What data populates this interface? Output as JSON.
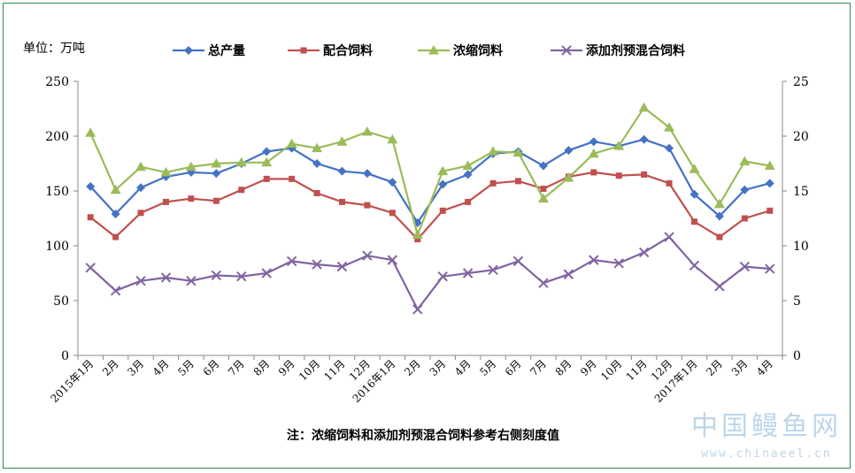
{
  "unit_label": "单位：万吨",
  "note": "注：浓缩饲料和添加剂预混合饲料参考右侧刻度值",
  "watermark": {
    "title": "中国鳗鱼网",
    "url": "www.chinaeel.cn"
  },
  "chart_data": {
    "type": "line",
    "categories": [
      "2015年1月",
      "2月",
      "3月",
      "4月",
      "5月",
      "6月",
      "7月",
      "8月",
      "9月",
      "10月",
      "11月",
      "12月",
      "2016年1月",
      "2月",
      "3月",
      "4月",
      "5月",
      "6月",
      "7月",
      "8月",
      "9月",
      "10月",
      "11月",
      "12月",
      "2017年1月",
      "2月",
      "3月",
      "4月"
    ],
    "y_left": {
      "min": 0,
      "max": 250,
      "ticks": [
        "0",
        "50",
        "100",
        "150",
        "200",
        "250"
      ]
    },
    "y_right": {
      "min": 0,
      "max": 25,
      "ticks": [
        "0",
        "5",
        "10",
        "15",
        "20",
        "25"
      ]
    },
    "legend_position": "top",
    "grid": false,
    "series": [
      {
        "name": "总产量",
        "axis": "left",
        "color": "#4472c4",
        "marker": "diamond",
        "values": [
          154,
          129,
          153,
          163,
          167,
          166,
          175,
          186,
          189,
          175,
          168,
          166,
          158,
          121,
          156,
          165,
          184,
          186,
          173,
          187,
          195,
          191,
          197,
          189,
          147,
          127,
          151,
          157
        ]
      },
      {
        "name": "配合饲料",
        "axis": "left",
        "color": "#c0504d",
        "marker": "square",
        "values": [
          126,
          108,
          130,
          140,
          143,
          141,
          151,
          161,
          161,
          148,
          140,
          137,
          130,
          106,
          132,
          140,
          157,
          159,
          152,
          163,
          167,
          164,
          165,
          157,
          122,
          108,
          125,
          132
        ]
      },
      {
        "name": "浓缩饲料",
        "axis": "right",
        "color": "#9bbb59",
        "marker": "triangle",
        "values": [
          20.3,
          15.1,
          17.2,
          16.7,
          17.2,
          17.5,
          17.6,
          17.6,
          19.3,
          18.9,
          19.5,
          20.4,
          19.7,
          11.0,
          16.8,
          17.3,
          18.6,
          18.5,
          14.3,
          16.2,
          18.4,
          19.1,
          22.6,
          20.8,
          17.0,
          13.8,
          17.7,
          17.3
        ]
      },
      {
        "name": "添加剂预混合饲料",
        "axis": "right",
        "color": "#8064a2",
        "marker": "x",
        "values": [
          8.0,
          5.9,
          6.8,
          7.1,
          6.8,
          7.3,
          7.2,
          7.5,
          8.6,
          8.3,
          8.1,
          9.1,
          8.7,
          4.2,
          7.2,
          7.5,
          7.8,
          8.6,
          6.6,
          7.4,
          8.7,
          8.4,
          9.4,
          10.8,
          8.2,
          6.3,
          8.1,
          7.9
        ]
      }
    ]
  }
}
